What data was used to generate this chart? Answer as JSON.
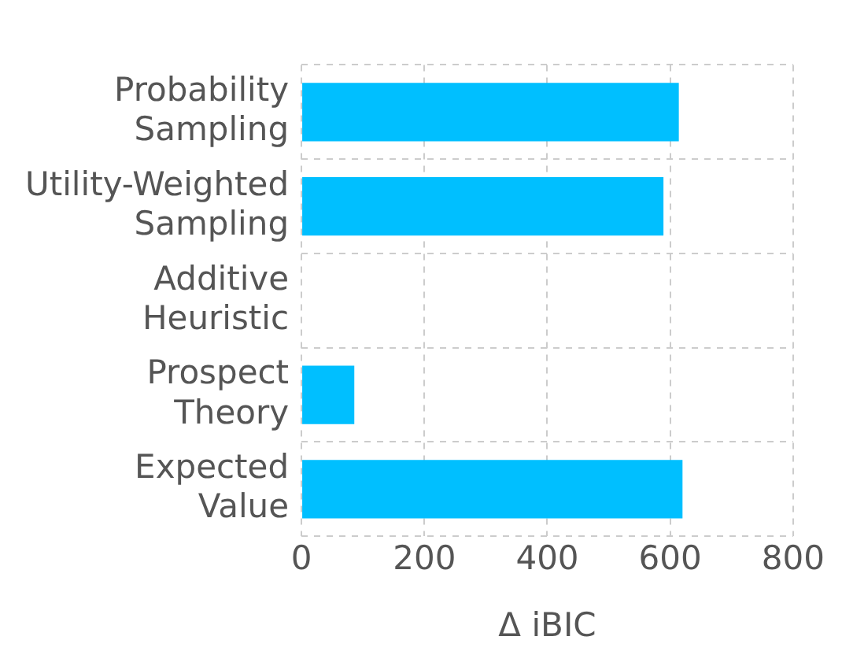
{
  "chart_data": {
    "type": "bar",
    "orientation": "horizontal",
    "categories": [
      "Probability Sampling",
      "Utility-Weighted Sampling",
      "Additive Heuristic",
      "Prospect Theory",
      "Expected Value"
    ],
    "values": [
      614,
      589,
      0,
      86,
      620
    ],
    "color": "#00bfff",
    "xlabel": "Δ iBIC",
    "xlim": [
      0,
      800
    ],
    "xticks": [
      0,
      200,
      400,
      600,
      800
    ],
    "grid": true
  }
}
